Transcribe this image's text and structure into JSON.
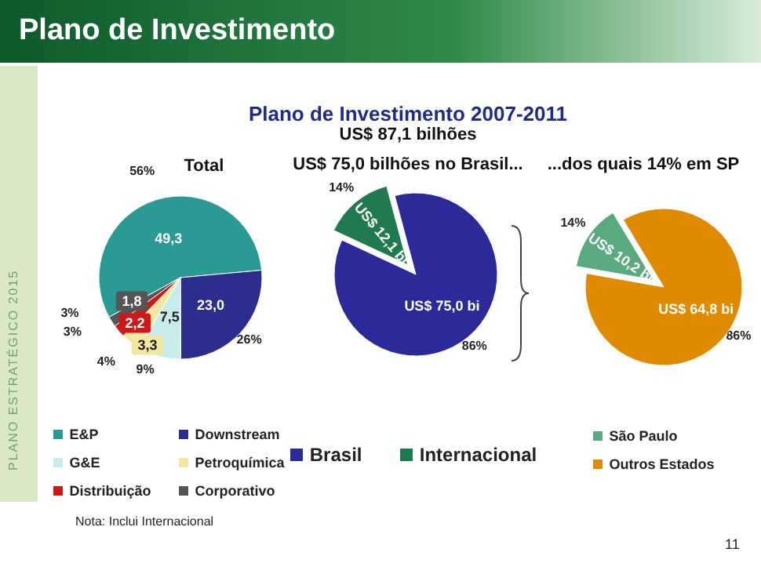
{
  "chart_data": [
    {
      "type": "pie",
      "title": "Total",
      "categories": [
        "E&P",
        "Downstream",
        "G&E",
        "Petroquímica",
        "Distribuição",
        "Corporativo"
      ],
      "values": [
        49.3,
        23.0,
        7.5,
        3.3,
        2.2,
        1.8
      ],
      "value_labels": [
        "49,3",
        "23,0",
        "7,5",
        "3,3",
        "2,2",
        "1,8"
      ],
      "colors": [
        "#2a9a94",
        "#2b2e8c",
        "#c8ecec",
        "#f0e8a0",
        "#d01818",
        "#555555"
      ],
      "legend": "bottom",
      "annotations": [
        {
          "text": "56%",
          "x": "E&P"
        },
        {
          "text": "26%",
          "x": "Downstream"
        },
        {
          "text": "9%",
          "x": "G&E"
        },
        {
          "text": "4%",
          "x": "Petroquímica"
        },
        {
          "text": "3%",
          "x": "Distribuição"
        },
        {
          "text": "3%",
          "x": "Corporativo"
        },
        "Plano de Investimento",
        "Plano de Investimento 2007-2011",
        "US$ 87,1 bilhões",
        "Nota: Inclui Internacional",
        "PLANO ESTRATÉGICO 2015",
        "11"
      ]
    },
    {
      "type": "pie",
      "title": "US$ 75,0 bilhões no Brasil...",
      "categories": [
        "Brasil",
        "Internacional"
      ],
      "values": [
        75.0,
        12.1
      ],
      "value_labels": [
        "US$ 75,0 bi",
        "US$ 12,1 bi"
      ],
      "colors": [
        "#2a2a9a",
        "#1f7a50"
      ],
      "legend": "bottom",
      "annotations": [
        {
          "text": "86%",
          "x": "Brasil"
        },
        {
          "text": "14%",
          "x": "Internacional"
        }
      ]
    },
    {
      "type": "pie",
      "title": "...dos quais 14% em SP",
      "categories": [
        "São Paulo",
        "Outros Estados"
      ],
      "values": [
        10.2,
        64.8
      ],
      "value_labels": [
        "US$ 10,2 bi",
        "US$ 64,8 bi"
      ],
      "colors": [
        "#5aaa80",
        "#e08a00"
      ],
      "legend": "bottom",
      "annotations": [
        {
          "text": "14%",
          "x": "São Paulo"
        },
        {
          "text": "86%",
          "x": "Outros Estados"
        }
      ]
    }
  ]
}
